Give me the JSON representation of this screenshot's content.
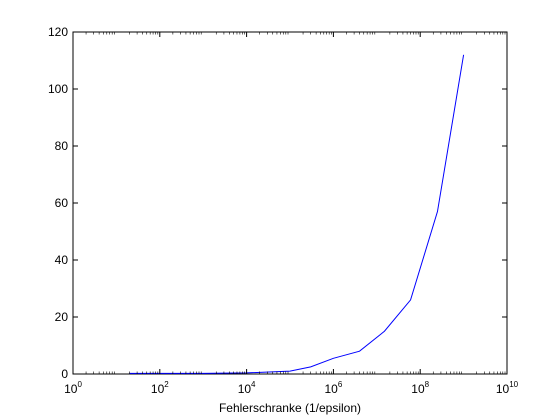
{
  "chart_data": {
    "type": "line",
    "title": "",
    "xlabel": "Fehlerschranke (1/epsilon)",
    "ylabel": "",
    "x_scale": "log",
    "xlim": [
      1,
      10000000000
    ],
    "ylim": [
      0,
      120
    ],
    "grid": false,
    "x_ticks": [
      {
        "base": "10",
        "exp": "0",
        "value": 1
      },
      {
        "base": "10",
        "exp": "2",
        "value": 100
      },
      {
        "base": "10",
        "exp": "4",
        "value": 10000
      },
      {
        "base": "10",
        "exp": "6",
        "value": 1000000
      },
      {
        "base": "10",
        "exp": "8",
        "value": 100000000
      },
      {
        "base": "10",
        "exp": "10",
        "value": 10000000000
      }
    ],
    "y_ticks": [
      "0",
      "20",
      "40",
      "60",
      "80",
      "100",
      "120"
    ],
    "series": [
      {
        "color": "#0000ff",
        "x": [
          20,
          100,
          1000,
          10000,
          100000,
          300000,
          1000000,
          4000000,
          15000000,
          60000000,
          250000000,
          1000000000
        ],
        "y": [
          0.2,
          0.2,
          0.2,
          0.4,
          1.0,
          2.5,
          5.5,
          8.0,
          15.0,
          26.0,
          57.0,
          112.0
        ]
      }
    ]
  }
}
